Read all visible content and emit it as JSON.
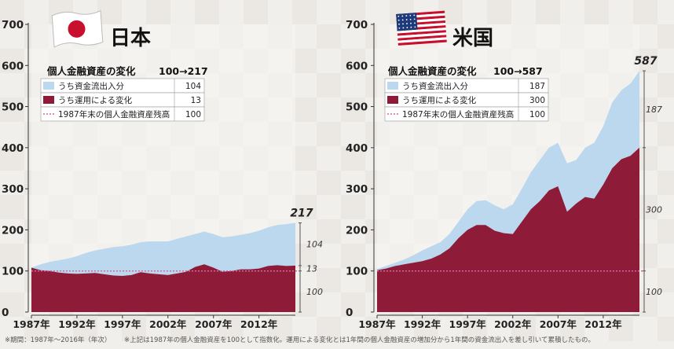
{
  "chart_data": [
    {
      "type": "area",
      "country": "日本",
      "flag": "japan",
      "title": "個人金融資産の変化",
      "change_label": "100→217",
      "x": [
        1987,
        1988,
        1989,
        1990,
        1991,
        1992,
        1993,
        1994,
        1995,
        1996,
        1997,
        1998,
        1999,
        2000,
        2001,
        2002,
        2003,
        2004,
        2005,
        2006,
        2007,
        2008,
        2009,
        2010,
        2011,
        2012,
        2013,
        2014,
        2015,
        2016
      ],
      "xticks": [
        "1987年",
        "1992年",
        "1997年",
        "2002年",
        "2007年",
        "2012年"
      ],
      "ylim": [
        0,
        700
      ],
      "yticks": [
        "0",
        "100",
        "200",
        "300",
        "400",
        "500",
        "600",
        "700"
      ],
      "series": [
        {
          "name": "うち運用による変化",
          "value": "13",
          "color": "#8e1b37",
          "values": [
            108,
            102,
            100,
            96,
            94,
            93,
            94,
            95,
            92,
            89,
            88,
            90,
            97,
            94,
            92,
            90,
            94,
            98,
            110,
            116,
            108,
            98,
            100,
            104,
            104,
            106,
            112,
            114,
            112,
            113
          ]
        },
        {
          "name": "うち資金流出入分",
          "value": "104",
          "color": "#bcd8ee",
          "values": [
            108,
            116,
            122,
            126,
            130,
            136,
            144,
            150,
            154,
            158,
            160,
            164,
            170,
            172,
            172,
            172,
            178,
            184,
            190,
            196,
            190,
            182,
            184,
            188,
            192,
            198,
            206,
            212,
            214,
            217
          ]
        }
      ],
      "baseline": {
        "name": "1987年末の個人金融資産残高",
        "value": "100",
        "color": "#d06a9c",
        "y": 100
      },
      "end_labels": {
        "total": "217",
        "inflow": "104",
        "growth": "13",
        "base": "100"
      }
    },
    {
      "type": "area",
      "country": "米国",
      "flag": "usa",
      "title": "個人金融資産の変化",
      "change_label": "100→587",
      "x": [
        1987,
        1988,
        1989,
        1990,
        1991,
        1992,
        1993,
        1994,
        1995,
        1996,
        1997,
        1998,
        1999,
        2000,
        2001,
        2002,
        2003,
        2004,
        2005,
        2006,
        2007,
        2008,
        2009,
        2010,
        2011,
        2012,
        2013,
        2014,
        2015,
        2016
      ],
      "xticks": [
        "1987年",
        "1992年",
        "1997年",
        "2002年",
        "2007年",
        "2012年"
      ],
      "ylim": [
        0,
        700
      ],
      "yticks": [
        "0",
        "100",
        "200",
        "300",
        "400",
        "500",
        "600",
        "700"
      ],
      "series": [
        {
          "name": "うち運用による変化",
          "value": "300",
          "color": "#8e1b37",
          "values": [
            102,
            106,
            112,
            116,
            120,
            124,
            130,
            140,
            155,
            180,
            200,
            212,
            212,
            198,
            192,
            190,
            220,
            250,
            270,
            296,
            306,
            244,
            264,
            280,
            276,
            310,
            350,
            372,
            380,
            400
          ]
        },
        {
          "name": "うち資金流出入分",
          "value": "187",
          "color": "#bcd8ee",
          "values": [
            105,
            112,
            120,
            128,
            138,
            150,
            160,
            170,
            190,
            220,
            250,
            270,
            272,
            260,
            250,
            262,
            300,
            340,
            370,
            400,
            412,
            362,
            370,
            400,
            412,
            452,
            510,
            540,
            556,
            587
          ]
        }
      ],
      "baseline": {
        "name": "1987年末の個人金融資産残高",
        "value": "100",
        "color": "#d06a9c",
        "y": 100
      },
      "end_labels": {
        "total": "587",
        "inflow": "187",
        "growth": "300",
        "base": "100"
      }
    }
  ],
  "footnotes": {
    "period": "※期間：1987年〜2016年（年次）",
    "calc": "※上記は1987年の個人金融資産を100として指数化。運用による変化とは1年間の個人金融資産の増加分から1年間の資金流出入を差し引いて累積したもの。"
  }
}
